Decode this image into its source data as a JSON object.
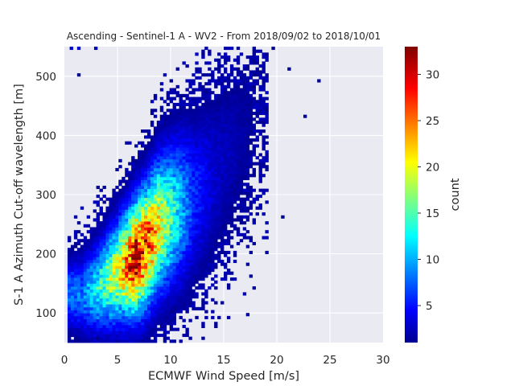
{
  "chart_data": {
    "type": "heatmap",
    "title": "Ascending - Sentinel-1 A - WV2 - From 2018/09/02 to 2018/10/01",
    "xlabel": "ECMWF Wind Speed [m/s]",
    "ylabel": "S-1 A Azimuth Cut-off wavelength [m]",
    "xlim": [
      0,
      30
    ],
    "ylim": [
      50,
      550
    ],
    "xticks": [
      0,
      5,
      10,
      15,
      20,
      25,
      30
    ],
    "xtick_labels": [
      "0",
      "5",
      "10",
      "15",
      "20",
      "25",
      "30"
    ],
    "yticks": [
      100,
      200,
      300,
      400,
      500
    ],
    "ytick_labels": [
      "100",
      "200",
      "300",
      "400",
      "500"
    ],
    "grid": true,
    "colormap": "jet",
    "colorbar": {
      "label": "count",
      "range": [
        1,
        33
      ],
      "ticks": [
        5,
        10,
        15,
        20,
        25,
        30
      ],
      "tick_labels": [
        "5",
        "10",
        "15",
        "20",
        "25",
        "30"
      ]
    },
    "bin_width": {
      "x": 0.3,
      "y": 5
    },
    "density_ridge": {
      "description": "count peaks along a diagonal band",
      "points": [
        {
          "x": 1.5,
          "y": 130,
          "count": 8
        },
        {
          "x": 3,
          "y": 140,
          "count": 13
        },
        {
          "x": 5,
          "y": 170,
          "count": 20
        },
        {
          "x": 6.5,
          "y": 190,
          "count": 30
        },
        {
          "x": 7.5,
          "y": 210,
          "count": 27
        },
        {
          "x": 8.5,
          "y": 240,
          "count": 22
        },
        {
          "x": 10,
          "y": 265,
          "count": 14
        },
        {
          "x": 12,
          "y": 290,
          "count": 6
        },
        {
          "x": 14,
          "y": 330,
          "count": 3
        },
        {
          "x": 16,
          "y": 380,
          "count": 2
        },
        {
          "x": 18,
          "y": 430,
          "count": 1
        }
      ]
    },
    "outliers": [
      {
        "x": 0.5,
        "y": 545,
        "count": 3
      },
      {
        "x": 1.2,
        "y": 545,
        "count": 3
      },
      {
        "x": 2.8,
        "y": 545,
        "count": 2
      },
      {
        "x": 19.5,
        "y": 545,
        "count": 1
      },
      {
        "x": 23.8,
        "y": 490,
        "count": 1
      },
      {
        "x": 20.4,
        "y": 260,
        "count": 1
      },
      {
        "x": 22.5,
        "y": 430,
        "count": 1
      },
      {
        "x": 21,
        "y": 510,
        "count": 1
      },
      {
        "x": 1.2,
        "y": 500,
        "count": 1
      },
      {
        "x": 3,
        "y": 55,
        "count": 1
      }
    ]
  }
}
